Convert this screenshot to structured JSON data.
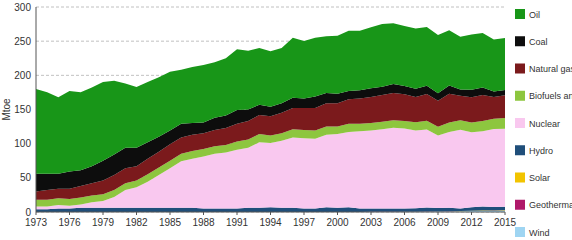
{
  "chart_data": {
    "type": "area",
    "stacked": true,
    "grid": true,
    "legend": "right",
    "y_label": "Mtoe",
    "x": [
      1973,
      1974,
      1975,
      1976,
      1977,
      1978,
      1979,
      1980,
      1981,
      1982,
      1983,
      1984,
      1985,
      1986,
      1987,
      1988,
      1989,
      1990,
      1991,
      1992,
      1993,
      1994,
      1995,
      1996,
      1997,
      1998,
      1999,
      2000,
      2001,
      2002,
      2003,
      2004,
      2005,
      2006,
      2007,
      2008,
      2009,
      2010,
      2011,
      2012,
      2013,
      2014,
      2015
    ],
    "xlim": [
      1973,
      2015
    ],
    "xticks": [
      1973,
      1976,
      1979,
      1982,
      1985,
      1988,
      1991,
      1994,
      1997,
      2000,
      2003,
      2006,
      2009,
      2012,
      2015
    ],
    "ylim": [
      0,
      300
    ],
    "yticks": [
      0,
      50,
      100,
      150,
      200,
      250,
      300
    ],
    "series": [
      {
        "name": "Oil",
        "color": "#189618",
        "values": [
          124,
          119,
          112,
          118,
          114,
          115,
          115,
          108,
          94,
          89,
          88,
          87,
          86,
          79,
          82,
          84,
          81,
          84,
          89,
          86,
          83,
          81,
          81,
          88,
          84,
          86,
          83,
          85,
          88,
          87,
          89,
          92,
          89,
          88,
          88,
          86,
          85,
          81,
          77,
          81,
          80,
          76,
          76
        ]
      },
      {
        "name": "Coal",
        "color": "#0d0d0d",
        "values": [
          26,
          24,
          22,
          25,
          23,
          25,
          29,
          30,
          30,
          27,
          24,
          22,
          20,
          20,
          17,
          16,
          18,
          18,
          20,
          17,
          15,
          14,
          14,
          15,
          14,
          17,
          15,
          14,
          12,
          12,
          13,
          12,
          13,
          12,
          12,
          12,
          11,
          12,
          9,
          11,
          11,
          8,
          8
        ]
      },
      {
        "name": "Natural gas",
        "color": "#7b1a1c",
        "values": [
          12,
          14,
          14,
          15,
          17,
          18,
          20,
          22,
          22,
          21,
          23,
          23,
          24,
          24,
          24,
          23,
          24,
          25,
          26,
          27,
          28,
          28,
          30,
          31,
          32,
          33,
          34,
          34,
          36,
          37,
          38,
          39,
          40,
          39,
          37,
          39,
          38,
          42,
          36,
          37,
          38,
          32,
          33
        ]
      },
      {
        "name": "Biofuels and waste",
        "color": "#8dc63f",
        "values": [
          10,
          10,
          10,
          10,
          10,
          10,
          10,
          10,
          10,
          10,
          11,
          11,
          11,
          11,
          11,
          11,
          11,
          11,
          12,
          12,
          12,
          11,
          11,
          12,
          12,
          12,
          12,
          11,
          12,
          11,
          11,
          11,
          11,
          11,
          12,
          13,
          13,
          14,
          14,
          14,
          15,
          15,
          16
        ]
      },
      {
        "name": "Nuclear",
        "color": "#f9c8ef",
        "values": [
          4,
          4,
          5,
          4,
          5,
          8,
          10,
          16,
          26,
          30,
          38,
          48,
          58,
          68,
          72,
          76,
          80,
          82,
          86,
          88,
          96,
          94,
          98,
          103,
          103,
          102,
          106,
          108,
          110,
          113,
          114,
          116,
          118,
          117,
          114,
          114,
          106,
          111,
          115,
          110,
          110,
          114,
          114
        ]
      },
      {
        "name": "Hydro",
        "color": "#1f4e7a",
        "values": [
          4,
          4,
          5,
          5,
          6,
          6,
          6,
          6,
          6,
          6,
          6,
          6,
          6,
          6,
          6,
          5,
          5,
          5,
          5,
          6,
          6,
          7,
          6,
          6,
          5,
          5,
          7,
          6,
          7,
          5,
          5,
          5,
          5,
          5,
          5,
          6,
          5,
          5,
          4,
          5,
          6,
          5,
          5
        ]
      },
      {
        "name": "Solar",
        "color": "#f2c400",
        "values": [
          0,
          0,
          0,
          0,
          0,
          0,
          0,
          0,
          0,
          0,
          0,
          0,
          0,
          0,
          0,
          0,
          0,
          0,
          0,
          0,
          0,
          0,
          0,
          0,
          0,
          0,
          0,
          0,
          0,
          0,
          0,
          0,
          0,
          0,
          0,
          0,
          0.05,
          0.1,
          0.2,
          0.4,
          0.5,
          0.6,
          0.7
        ]
      },
      {
        "name": "Geothermal",
        "color": "#b0186a",
        "values": [
          0.1,
          0.1,
          0.1,
          0.1,
          0.1,
          0.1,
          0.1,
          0.1,
          0.1,
          0.1,
          0.1,
          0.1,
          0.1,
          0.1,
          0.1,
          0.1,
          0.1,
          0.1,
          0.1,
          0.1,
          0.1,
          0.1,
          0.1,
          0.1,
          0.1,
          0.1,
          0.1,
          0.1,
          0.1,
          0.1,
          0.1,
          0.1,
          0.1,
          0.1,
          0.1,
          0.1,
          0.1,
          0.1,
          0.1,
          0.1,
          0.2,
          0.2,
          0.2
        ]
      },
      {
        "name": "Wind",
        "color": "#9fd5f2",
        "values": [
          0,
          0,
          0,
          0,
          0,
          0,
          0,
          0,
          0,
          0,
          0,
          0,
          0,
          0,
          0,
          0,
          0,
          0,
          0,
          0,
          0,
          0,
          0,
          0,
          0,
          0,
          0,
          0,
          0,
          0,
          0.1,
          0.1,
          0.1,
          0.2,
          0.3,
          0.5,
          0.7,
          0.9,
          1.0,
          1.3,
          1.4,
          1.5,
          1.8
        ]
      }
    ]
  }
}
